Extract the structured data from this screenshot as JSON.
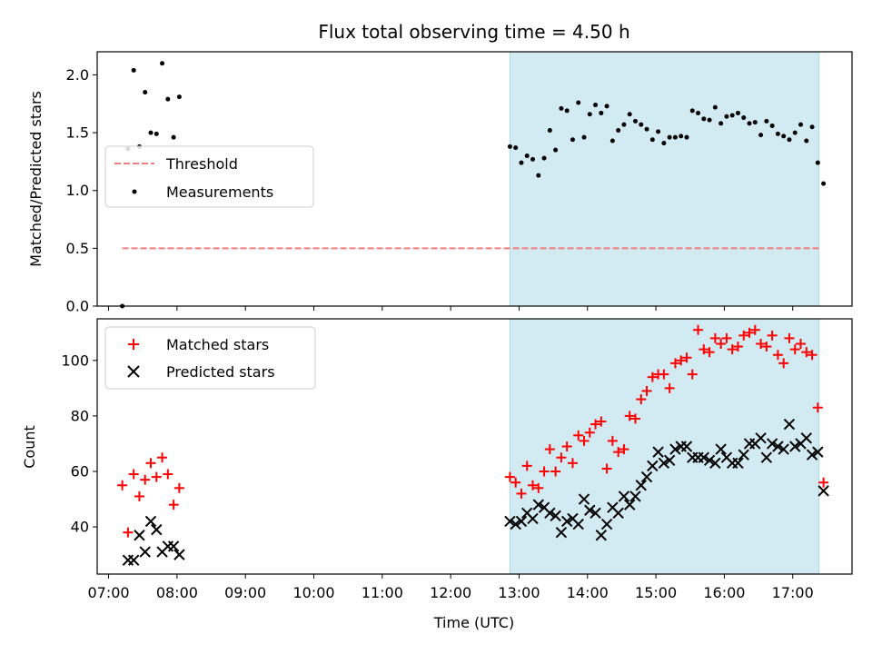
{
  "title": "Flux total observing time = 4.50 h",
  "xlabel": "Time (UTC)",
  "colors": {
    "threshold": "#f08080",
    "measurements": "#000000",
    "matched": "#ff0000",
    "predicted": "#000000",
    "shade": "#add8e6"
  },
  "chart_data": [
    {
      "type": "scatter",
      "panel": "top",
      "ylabel": "Matched/Predicted stars",
      "xlim": [
        "06:50",
        "17:52"
      ],
      "ylim": [
        0,
        2.2
      ],
      "yticks": [
        0.0,
        0.5,
        1.0,
        1.5,
        2.0
      ],
      "ytick_labels": [
        "0.0",
        "0.5",
        "1.0",
        "1.5",
        "2.0"
      ],
      "shaded_interval": [
        "12:52",
        "17:23"
      ],
      "legend_position": "center-left",
      "threshold": {
        "name": "Threshold",
        "value": 0.5,
        "x_range": [
          "07:12",
          "17:23"
        ]
      },
      "series": [
        {
          "name": "Measurements",
          "points": [
            [
              "07:12",
              0.0
            ],
            [
              "07:17",
              1.36
            ],
            [
              "07:22",
              2.04
            ],
            [
              "07:27",
              1.38
            ],
            [
              "07:32",
              1.85
            ],
            [
              "07:37",
              1.5
            ],
            [
              "07:42",
              1.49
            ],
            [
              "07:47",
              2.1
            ],
            [
              "07:52",
              1.79
            ],
            [
              "07:57",
              1.46
            ],
            [
              "08:02",
              1.81
            ],
            [
              "12:52",
              1.38
            ],
            [
              "12:57",
              1.37
            ],
            [
              "13:02",
              1.24
            ],
            [
              "13:07",
              1.3
            ],
            [
              "13:12",
              1.27
            ],
            [
              "13:17",
              1.13
            ],
            [
              "13:22",
              1.28
            ],
            [
              "13:27",
              1.52
            ],
            [
              "13:32",
              1.35
            ],
            [
              "13:37",
              1.71
            ],
            [
              "13:42",
              1.69
            ],
            [
              "13:47",
              1.44
            ],
            [
              "13:52",
              1.76
            ],
            [
              "13:57",
              1.46
            ],
            [
              "14:02",
              1.66
            ],
            [
              "14:07",
              1.74
            ],
            [
              "14:12",
              1.67
            ],
            [
              "14:17",
              1.73
            ],
            [
              "14:22",
              1.43
            ],
            [
              "14:27",
              1.52
            ],
            [
              "14:32",
              1.57
            ],
            [
              "14:37",
              1.66
            ],
            [
              "14:42",
              1.6
            ],
            [
              "14:47",
              1.57
            ],
            [
              "14:52",
              1.53
            ],
            [
              "14:57",
              1.44
            ],
            [
              "15:02",
              1.51
            ],
            [
              "15:07",
              1.41
            ],
            [
              "15:12",
              1.46
            ],
            [
              "15:17",
              1.46
            ],
            [
              "15:22",
              1.47
            ],
            [
              "15:27",
              1.46
            ],
            [
              "15:32",
              1.69
            ],
            [
              "15:37",
              1.67
            ],
            [
              "15:42",
              1.62
            ],
            [
              "15:47",
              1.61
            ],
            [
              "15:52",
              1.72
            ],
            [
              "15:57",
              1.58
            ],
            [
              "16:02",
              1.64
            ],
            [
              "16:07",
              1.65
            ],
            [
              "16:12",
              1.67
            ],
            [
              "16:17",
              1.63
            ],
            [
              "16:22",
              1.58
            ],
            [
              "16:27",
              1.59
            ],
            [
              "16:32",
              1.48
            ],
            [
              "16:37",
              1.6
            ],
            [
              "16:42",
              1.56
            ],
            [
              "16:47",
              1.49
            ],
            [
              "16:52",
              1.47
            ],
            [
              "16:57",
              1.44
            ],
            [
              "17:02",
              1.5
            ],
            [
              "17:07",
              1.57
            ],
            [
              "17:12",
              1.43
            ],
            [
              "17:17",
              1.55
            ],
            [
              "17:22",
              1.24
            ],
            [
              "17:27",
              1.06
            ]
          ]
        }
      ]
    },
    {
      "type": "scatter",
      "panel": "bottom",
      "ylabel": "Count",
      "xlim": [
        "06:50",
        "17:52"
      ],
      "ylim": [
        23,
        115
      ],
      "yticks": [
        40,
        60,
        80,
        100
      ],
      "ytick_labels": [
        "40",
        "60",
        "80",
        "100"
      ],
      "xticks": [
        "07:00",
        "08:00",
        "09:00",
        "10:00",
        "11:00",
        "12:00",
        "13:00",
        "14:00",
        "15:00",
        "16:00",
        "17:00"
      ],
      "xtick_labels": [
        "07:00",
        "08:00",
        "09:00",
        "10:00",
        "11:00",
        "12:00",
        "13:00",
        "14:00",
        "15:00",
        "16:00",
        "17:00"
      ],
      "shaded_interval": [
        "12:52",
        "17:23"
      ],
      "legend_position": "upper-left",
      "series": [
        {
          "name": "Matched stars",
          "marker": "plus",
          "points": [
            [
              "07:12",
              55
            ],
            [
              "07:17",
              38
            ],
            [
              "07:22",
              59
            ],
            [
              "07:27",
              51
            ],
            [
              "07:32",
              57
            ],
            [
              "07:37",
              63
            ],
            [
              "07:42",
              58
            ],
            [
              "07:47",
              65
            ],
            [
              "07:52",
              59
            ],
            [
              "07:57",
              48
            ],
            [
              "08:02",
              54
            ],
            [
              "12:52",
              58
            ],
            [
              "12:57",
              56
            ],
            [
              "13:02",
              52
            ],
            [
              "13:07",
              62
            ],
            [
              "13:12",
              55
            ],
            [
              "13:17",
              54
            ],
            [
              "13:22",
              60
            ],
            [
              "13:27",
              68
            ],
            [
              "13:32",
              60
            ],
            [
              "13:37",
              65
            ],
            [
              "13:42",
              69
            ],
            [
              "13:47",
              63
            ],
            [
              "13:52",
              73
            ],
            [
              "13:57",
              71
            ],
            [
              "14:02",
              74
            ],
            [
              "14:07",
              77
            ],
            [
              "14:12",
              78
            ],
            [
              "14:17",
              61
            ],
            [
              "14:22",
              71
            ],
            [
              "14:27",
              67
            ],
            [
              "14:32",
              68
            ],
            [
              "14:37",
              80
            ],
            [
              "14:42",
              79
            ],
            [
              "14:47",
              86
            ],
            [
              "14:52",
              89
            ],
            [
              "14:57",
              94
            ],
            [
              "15:02",
              95
            ],
            [
              "15:07",
              95
            ],
            [
              "15:12",
              90
            ],
            [
              "15:17",
              99
            ],
            [
              "15:22",
              100
            ],
            [
              "15:27",
              101
            ],
            [
              "15:32",
              95
            ],
            [
              "15:37",
              111
            ],
            [
              "15:42",
              104
            ],
            [
              "15:47",
              103
            ],
            [
              "15:52",
              108
            ],
            [
              "15:57",
              106
            ],
            [
              "16:02",
              108
            ],
            [
              "16:07",
              104
            ],
            [
              "16:12",
              105
            ],
            [
              "16:17",
              109
            ],
            [
              "16:22",
              110
            ],
            [
              "16:27",
              111
            ],
            [
              "16:32",
              106
            ],
            [
              "16:37",
              105
            ],
            [
              "16:42",
              109
            ],
            [
              "16:47",
              102
            ],
            [
              "16:52",
              99
            ],
            [
              "16:57",
              108
            ],
            [
              "17:02",
              104
            ],
            [
              "17:07",
              106
            ],
            [
              "17:12",
              103
            ],
            [
              "17:17",
              102
            ],
            [
              "17:22",
              83
            ],
            [
              "17:27",
              56
            ]
          ]
        },
        {
          "name": "Predicted stars",
          "marker": "x",
          "points": [
            [
              "07:17",
              28
            ],
            [
              "07:22",
              28
            ],
            [
              "07:27",
              37
            ],
            [
              "07:32",
              31
            ],
            [
              "07:37",
              42
            ],
            [
              "07:42",
              39
            ],
            [
              "07:47",
              31
            ],
            [
              "07:52",
              33
            ],
            [
              "07:57",
              33
            ],
            [
              "08:02",
              30
            ],
            [
              "12:52",
              42
            ],
            [
              "12:57",
              41
            ],
            [
              "13:02",
              42
            ],
            [
              "13:07",
              45
            ],
            [
              "13:12",
              43
            ],
            [
              "13:17",
              48
            ],
            [
              "13:22",
              47
            ],
            [
              "13:27",
              45
            ],
            [
              "13:32",
              44
            ],
            [
              "13:37",
              38
            ],
            [
              "13:42",
              42
            ],
            [
              "13:47",
              43
            ],
            [
              "13:52",
              41
            ],
            [
              "13:57",
              50
            ],
            [
              "14:02",
              46
            ],
            [
              "14:07",
              45
            ],
            [
              "14:12",
              37
            ],
            [
              "14:17",
              41
            ],
            [
              "14:22",
              47
            ],
            [
              "14:27",
              45
            ],
            [
              "14:32",
              51
            ],
            [
              "14:37",
              48
            ],
            [
              "14:42",
              51
            ],
            [
              "14:47",
              55
            ],
            [
              "14:52",
              58
            ],
            [
              "14:57",
              62
            ],
            [
              "15:02",
              67
            ],
            [
              "15:07",
              63
            ],
            [
              "15:12",
              64
            ],
            [
              "15:17",
              68
            ],
            [
              "15:22",
              69
            ],
            [
              "15:27",
              69
            ],
            [
              "15:32",
              65
            ],
            [
              "15:37",
              65
            ],
            [
              "15:42",
              65
            ],
            [
              "15:47",
              64
            ],
            [
              "15:52",
              63
            ],
            [
              "15:57",
              68
            ],
            [
              "16:02",
              65
            ],
            [
              "16:07",
              63
            ],
            [
              "16:12",
              63
            ],
            [
              "16:17",
              66
            ],
            [
              "16:22",
              70
            ],
            [
              "16:27",
              70
            ],
            [
              "16:32",
              72
            ],
            [
              "16:37",
              65
            ],
            [
              "16:42",
              70
            ],
            [
              "16:47",
              69
            ],
            [
              "16:52",
              68
            ],
            [
              "16:57",
              77
            ],
            [
              "17:02",
              69
            ],
            [
              "17:07",
              70
            ],
            [
              "17:12",
              72
            ],
            [
              "17:17",
              66
            ],
            [
              "17:22",
              67
            ],
            [
              "17:27",
              53
            ]
          ]
        }
      ]
    }
  ]
}
